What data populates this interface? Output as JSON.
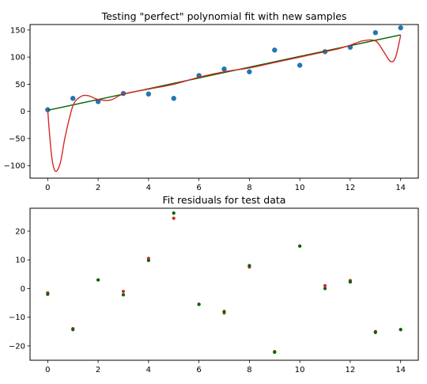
{
  "chart_data": [
    {
      "type": "scatter",
      "title": "Testing \"perfect\" polynomial fit with new samples",
      "xlabel": "",
      "ylabel": "",
      "xlim": [
        -0.7,
        14.7
      ],
      "ylim": [
        -123,
        160
      ],
      "xticks": [
        0,
        2,
        4,
        6,
        8,
        10,
        12,
        14
      ],
      "yticks": [
        -100,
        -50,
        0,
        50,
        100,
        150
      ],
      "grid": false,
      "colors": {
        "points": "#1f77b4",
        "poly_fit": "#d62728",
        "linear_fit": "#006400"
      },
      "series": [
        {
          "kind": "scatter",
          "x": [
            0,
            1,
            2,
            3,
            4,
            5,
            6,
            7,
            8,
            9,
            10,
            11,
            12,
            13,
            14
          ],
          "values": [
            3,
            24,
            18,
            33,
            32,
            24,
            66,
            78,
            73,
            113,
            85,
            110,
            118,
            145,
            154
          ]
        },
        {
          "kind": "line",
          "x": [
            0,
            14
          ],
          "values": [
            2,
            141
          ]
        },
        {
          "kind": "line",
          "x": [
            0,
            0.15,
            0.3,
            0.5,
            0.7,
            1.0,
            1.3,
            1.6,
            2.0,
            2.5,
            3.0,
            4.0,
            5.0,
            6.0,
            7.0,
            8.0,
            9.0,
            10.0,
            11.0,
            11.5,
            12.0,
            12.5,
            13.0,
            13.3,
            13.6,
            13.8,
            14.0
          ],
          "values": [
            2,
            -80,
            -110,
            -95,
            -45,
            10,
            27,
            29,
            22,
            21,
            32,
            41,
            50,
            63,
            73,
            80,
            90,
            100,
            110,
            115,
            122,
            130,
            130,
            112,
            92,
            100,
            140
          ]
        }
      ]
    },
    {
      "type": "scatter",
      "title": "Fit residuals for test data",
      "xlabel": "",
      "ylabel": "",
      "xlim": [
        -0.7,
        14.7
      ],
      "ylim": [
        -25,
        28
      ],
      "xticks": [
        0,
        2,
        4,
        6,
        8,
        10,
        12,
        14
      ],
      "yticks": [
        -20,
        -10,
        0,
        10,
        20
      ],
      "grid": false,
      "colors": {
        "red": "#d62728",
        "green": "#006400"
      },
      "series": [
        {
          "kind": "scatter",
          "color_key": "red",
          "x": [
            0,
            1,
            2,
            3,
            4,
            5,
            6,
            7,
            8,
            9,
            10,
            11,
            12,
            13,
            14
          ],
          "values": [
            -1.5,
            -14,
            3,
            -1,
            10.5,
            24.5,
            -5.5,
            -8.5,
            7.5,
            -22,
            14.8,
            1,
            2.8,
            -15,
            -14.3
          ]
        },
        {
          "kind": "scatter",
          "color_key": "green",
          "x": [
            0,
            1,
            2,
            3,
            4,
            5,
            6,
            7,
            8,
            9,
            10,
            11,
            12,
            13,
            14
          ],
          "values": [
            -2,
            -14.3,
            3,
            -2.2,
            9.8,
            26.3,
            -5.5,
            -8,
            8,
            -22.2,
            14.8,
            0,
            2.3,
            -15.3,
            -14.3
          ]
        }
      ]
    }
  ]
}
